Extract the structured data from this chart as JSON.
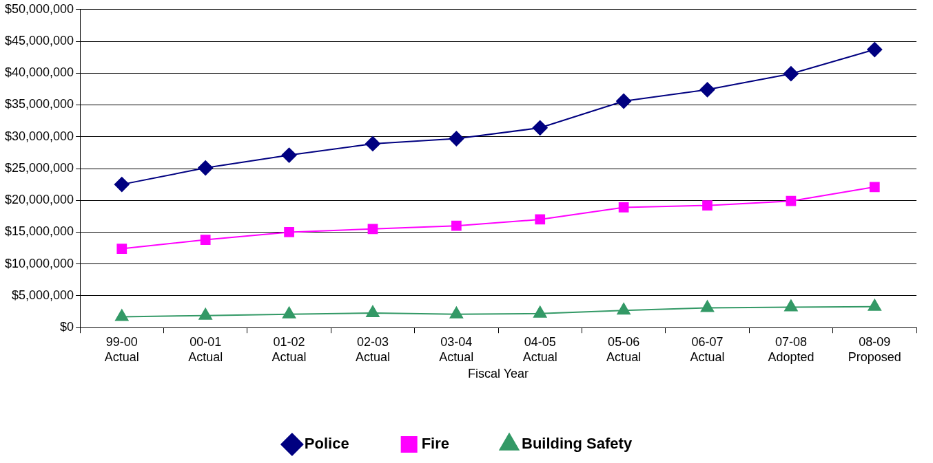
{
  "chart_data": {
    "type": "line",
    "xlabel": "Fiscal Year",
    "categories": [
      "99-00\nActual",
      "00-01\nActual",
      "01-02\nActual",
      "02-03\nActual",
      "03-04\nActual",
      "04-05\nActual",
      "05-06\nActual",
      "06-07\nActual",
      "07-08\nAdopted",
      "08-09\nProposed"
    ],
    "series": [
      {
        "name": "Police",
        "color": "#000080",
        "marker": "diamond",
        "values": [
          22500000,
          25100000,
          27100000,
          28900000,
          29700000,
          31400000,
          35600000,
          37400000,
          39900000,
          43700000
        ]
      },
      {
        "name": "Fire",
        "color": "#ff00ff",
        "marker": "square",
        "values": [
          12400000,
          13800000,
          15000000,
          15500000,
          16000000,
          17000000,
          18900000,
          19200000,
          19900000,
          22100000
        ]
      },
      {
        "name": "Building Safety",
        "color": "#339966",
        "marker": "triangle",
        "values": [
          1700000,
          1900000,
          2100000,
          2300000,
          2100000,
          2200000,
          2700000,
          3100000,
          3200000,
          3300000
        ]
      }
    ],
    "ylim": [
      0,
      50000000
    ],
    "yticks": [
      {
        "value": 0,
        "label": "$0"
      },
      {
        "value": 5000000,
        "label": "$5,000,000"
      },
      {
        "value": 10000000,
        "label": "$10,000,000"
      },
      {
        "value": 15000000,
        "label": "$15,000,000"
      },
      {
        "value": 20000000,
        "label": "$20,000,000"
      },
      {
        "value": 25000000,
        "label": "$25,000,000"
      },
      {
        "value": 30000000,
        "label": "$30,000,000"
      },
      {
        "value": 35000000,
        "label": "$35,000,000"
      },
      {
        "value": 40000000,
        "label": "$40,000,000"
      },
      {
        "value": 45000000,
        "label": "$45,000,000"
      },
      {
        "value": 50000000,
        "label": "$50,000,000"
      }
    ],
    "grid": "y",
    "legend": "bottom",
    "line_style": "solid"
  }
}
